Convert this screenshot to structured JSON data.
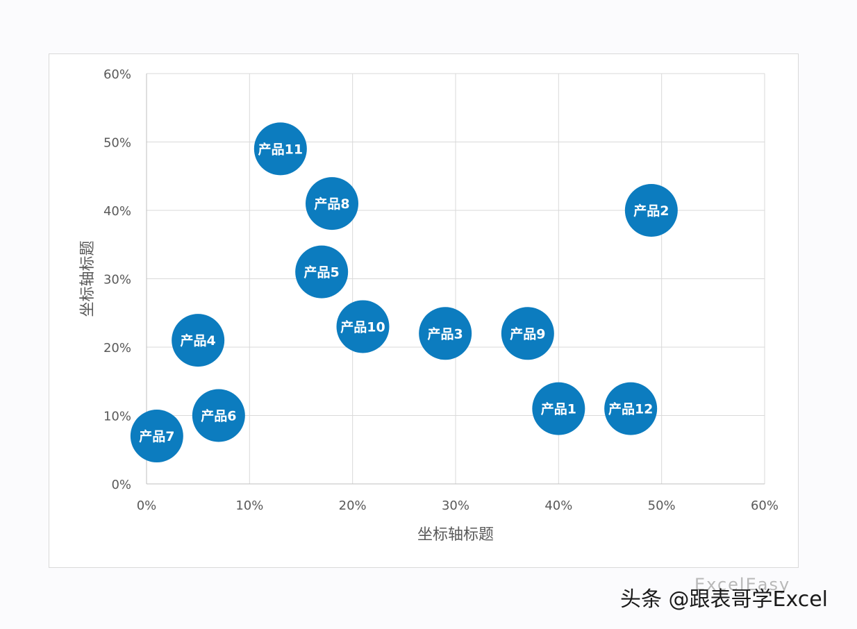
{
  "chart_data": {
    "type": "scatter",
    "xlabel": "坐标轴标题",
    "ylabel": "坐标轴标题",
    "xlim": [
      0,
      60
    ],
    "ylim": [
      0,
      60
    ],
    "xticks": [
      "0%",
      "10%",
      "20%",
      "30%",
      "40%",
      "50%",
      "60%"
    ],
    "yticks": [
      "0%",
      "10%",
      "20%",
      "30%",
      "40%",
      "50%",
      "60%"
    ],
    "grid": true,
    "color": "#0c7cbf",
    "points": [
      {
        "label": "产品1",
        "x": 40,
        "y": 11
      },
      {
        "label": "产品2",
        "x": 49,
        "y": 40
      },
      {
        "label": "产品3",
        "x": 29,
        "y": 22
      },
      {
        "label": "产品4",
        "x": 5,
        "y": 21
      },
      {
        "label": "产品5",
        "x": 17,
        "y": 31
      },
      {
        "label": "产品6",
        "x": 7,
        "y": 10
      },
      {
        "label": "产品7",
        "x": 1,
        "y": 7
      },
      {
        "label": "产品8",
        "x": 18,
        "y": 41
      },
      {
        "label": "产品9",
        "x": 37,
        "y": 22
      },
      {
        "label": "产品10",
        "x": 21,
        "y": 23
      },
      {
        "label": "产品11",
        "x": 13,
        "y": 49
      },
      {
        "label": "产品12",
        "x": 47,
        "y": 11
      }
    ]
  },
  "watermark": {
    "text": "头条 @跟表哥学Excel",
    "faint_text": "ExcelEasy"
  }
}
